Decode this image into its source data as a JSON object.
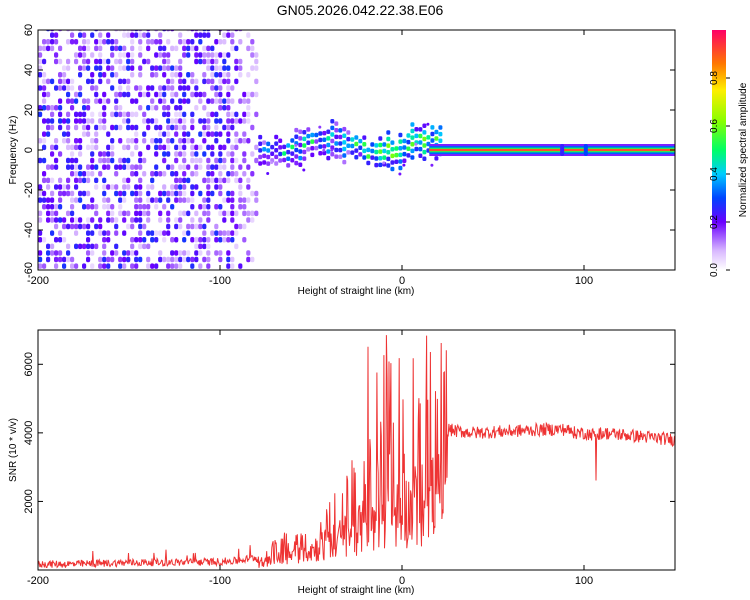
{
  "chart_data": [
    {
      "type": "heatmap",
      "title": "GN05.2026.042.22.38.E06",
      "xlabel": "Height of straight line (km)",
      "ylabel": "Frequency (Hz)",
      "xlim": [
        -200,
        150
      ],
      "ylim": [
        -60,
        60
      ],
      "xticks": [
        "-200",
        "-100",
        "0",
        "100"
      ],
      "yticks": [
        "60",
        "40",
        "20",
        "0",
        "-20",
        "-40",
        "-60"
      ],
      "colorbar": {
        "label": "Normalized spectral amplitude",
        "range": [
          0,
          1
        ],
        "ticks": [
          "0.0",
          "0.2",
          "0.4",
          "0.6",
          "0.8"
        ]
      },
      "regions": [
        {
          "name": "noise",
          "x_range": [
            -200,
            -80
          ],
          "freq_range": [
            -60,
            60
          ],
          "amplitude": [
            0.05,
            0.25
          ]
        },
        {
          "name": "transition",
          "x_range": [
            -80,
            20
          ],
          "freq_range": [
            -15,
            15
          ],
          "amplitude": [
            0.2,
            0.6
          ]
        },
        {
          "name": "carrier",
          "x_range": [
            20,
            150
          ],
          "frequency": 0,
          "amplitude": 0.95
        }
      ]
    },
    {
      "type": "line",
      "xlabel": "Height of straight line (km)",
      "ylabel": "SNR (10 * v/v)",
      "xlim": [
        -200,
        150
      ],
      "ylim": [
        0,
        7000
      ],
      "xticks": [
        "-200",
        "-100",
        "0",
        "100"
      ],
      "yticks": [
        "2000",
        "4000",
        "6000"
      ],
      "color": "#ee3333",
      "series": [
        {
          "name": "SNR",
          "x": [
            -200,
            -180,
            -160,
            -140,
            -120,
            -100,
            -90,
            -80,
            -70,
            -60,
            -50,
            -40,
            -30,
            -20,
            -10,
            0,
            10,
            20,
            25,
            30,
            40,
            60,
            80,
            90,
            95,
            100,
            105,
            110,
            130,
            150
          ],
          "y": [
            150,
            150,
            180,
            200,
            200,
            220,
            250,
            350,
            700,
            1000,
            1400,
            1800,
            2400,
            3000,
            3500,
            4000,
            4500,
            5000,
            4100,
            4050,
            4000,
            4050,
            4100,
            4100,
            4000,
            4000,
            3950,
            4000,
            3900,
            3800
          ]
        }
      ]
    }
  ]
}
